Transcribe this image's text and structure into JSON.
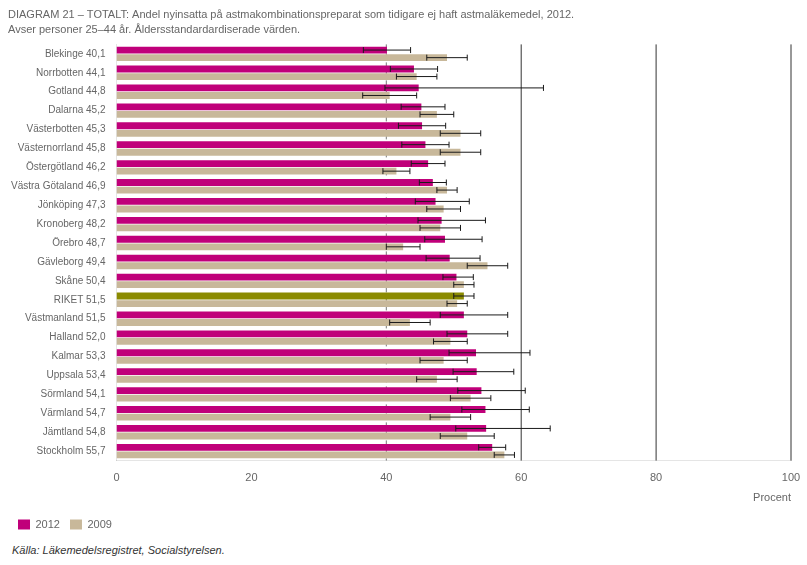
{
  "chart_data": {
    "type": "bar",
    "orientation": "horizontal",
    "title": "DIAGRAM 21 – TOTALT: Andel nyinsatta på astmakombinationspreparat som tidigare ej haft astmaläkemedel, 2012.",
    "subtitle": "Avser personer 25–44 år. Åldersstandardardiserade värden.",
    "source": "Källa: Läkemedelsregistret, Socialstyrelsen.",
    "categories": [
      "Blekinge 40,1",
      "Norrbotten 44,1",
      "Gotland 44,8",
      "Dalarna 45,2",
      "Västerbotten 45,3",
      "Västernorrland 45,8",
      "Östergötland 46,2",
      "Västra Götaland 46,9",
      "Jönköping 47,3",
      "Kronoberg 48,2",
      "Örebro 48,7",
      "Gävleborg 49,4",
      "Skåne 50,4",
      "RIKET 51,5",
      "Västmanland 51,5",
      "Halland 52,0",
      "Kalmar 53,3",
      "Uppsala 53,4",
      "Sörmland 54,1",
      "Värmland 54,7",
      "Jämtland 54,8",
      "Stockholm 55,7"
    ],
    "series": [
      {
        "name": "2012",
        "color": "#c0007a",
        "colors": [
          "#c0007a",
          "#c0007a",
          "#c0007a",
          "#c0007a",
          "#c0007a",
          "#c0007a",
          "#c0007a",
          "#c0007a",
          "#c0007a",
          "#c0007a",
          "#c0007a",
          "#c0007a",
          "#c0007a",
          "#8b8b00",
          "#c0007a",
          "#c0007a",
          "#c0007a",
          "#c0007a",
          "#c0007a",
          "#c0007a",
          "#c0007a",
          "#c0007a"
        ],
        "values": [
          40.1,
          44.1,
          44.8,
          45.2,
          45.3,
          45.8,
          46.2,
          46.9,
          47.3,
          48.2,
          48.7,
          49.4,
          50.4,
          51.5,
          51.5,
          52.0,
          53.3,
          53.4,
          54.1,
          54.7,
          54.8,
          55.7
        ],
        "err_low": [
          3.5,
          3.5,
          5.0,
          3.0,
          3.5,
          3.5,
          2.5,
          2.0,
          3.0,
          3.5,
          3.0,
          3.5,
          2.0,
          1.5,
          3.5,
          3.0,
          4.0,
          3.5,
          3.5,
          3.5,
          4.5,
          2.0
        ],
        "err_high": [
          3.5,
          3.5,
          18.5,
          3.5,
          3.5,
          3.5,
          2.5,
          2.0,
          5.0,
          6.5,
          5.5,
          4.5,
          2.5,
          1.5,
          6.5,
          6.0,
          8.0,
          5.5,
          6.5,
          6.5,
          9.5,
          2.0
        ]
      },
      {
        "name": "2009",
        "color": "#c8b89a",
        "values": [
          49.0,
          44.5,
          40.5,
          47.5,
          51.0,
          51.0,
          41.5,
          49.0,
          48.5,
          48.0,
          42.5,
          55.0,
          51.5,
          50.5,
          43.5,
          49.5,
          48.5,
          47.5,
          52.5,
          49.5,
          52.0,
          57.5
        ],
        "err_low": [
          3.0,
          3.0,
          4.0,
          2.5,
          3.0,
          3.0,
          2.0,
          1.5,
          2.5,
          3.0,
          2.5,
          3.0,
          1.5,
          1.5,
          3.0,
          2.5,
          3.5,
          3.0,
          3.0,
          3.0,
          4.0,
          1.5
        ],
        "err_high": [
          3.0,
          3.0,
          4.0,
          2.5,
          3.0,
          3.0,
          2.0,
          1.5,
          2.5,
          3.0,
          2.5,
          3.0,
          1.5,
          1.5,
          3.0,
          2.5,
          3.5,
          3.0,
          3.0,
          3.0,
          4.0,
          1.5
        ]
      }
    ],
    "error_bar_color": "#1a1a1a",
    "xlabel": "Procent",
    "xlim": [
      0,
      100
    ],
    "xticks": [
      0,
      20,
      40,
      60,
      80,
      100
    ],
    "reference_lines": [
      {
        "x": 40,
        "line_style": "dashed"
      },
      {
        "x": 60,
        "line_style": "solid"
      },
      {
        "x": 80,
        "line_style": "solid"
      },
      {
        "x": 100,
        "line_style": "solid"
      }
    ],
    "grid": false,
    "legend": "lower left"
  }
}
